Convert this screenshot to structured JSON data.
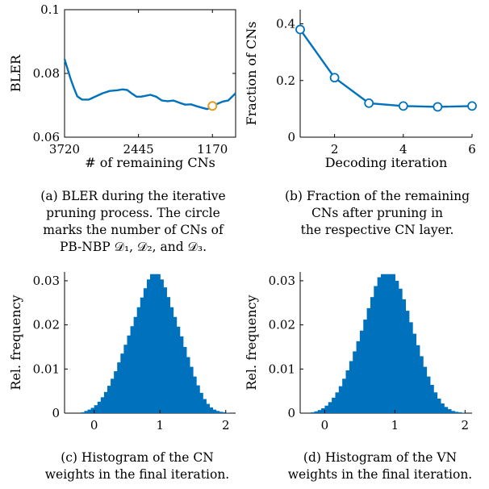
{
  "colors": {
    "series": "#0072bd",
    "highlight": "#e59d21",
    "axis": "#000000"
  },
  "captions": {
    "a": [
      "(a) BLER during the iterative",
      "pruning process. The circle",
      "marks the number of CNs of",
      "PB-NBP 𝒟₁, 𝒟₂, and 𝒟₃."
    ],
    "b": [
      "(b) Fraction of the remaining",
      "CNs after pruning in",
      "the respective CN layer."
    ],
    "c": [
      "(c) Histogram of the CN",
      "weights in the final iteration."
    ],
    "d": [
      "(d) Histogram of the VN",
      "weights in the final iteration."
    ]
  },
  "chart_data": [
    {
      "id": "a",
      "type": "line",
      "xlabel": "# of remaining CNs",
      "ylabel": "BLER",
      "xlim": [
        3720,
        770
      ],
      "ylim": [
        0.06,
        0.1
      ],
      "xticks": [
        3720,
        2445,
        1170
      ],
      "yticks": [
        0.06,
        0.08,
        0.1
      ],
      "ytick_labels": [
        "0.06",
        "0.08",
        "0.1"
      ],
      "x": [
        3720,
        3620,
        3560,
        3500,
        3420,
        3300,
        3180,
        3060,
        2940,
        2820,
        2720,
        2640,
        2560,
        2480,
        2400,
        2320,
        2240,
        2140,
        2040,
        1940,
        1840,
        1740,
        1640,
        1540,
        1440,
        1340,
        1260,
        1170,
        1080,
        990,
        900,
        830,
        770
      ],
      "y": [
        0.0845,
        0.0785,
        0.0755,
        0.0728,
        0.0718,
        0.0718,
        0.0728,
        0.0738,
        0.0745,
        0.0747,
        0.075,
        0.0748,
        0.0737,
        0.0727,
        0.0727,
        0.073,
        0.0733,
        0.0727,
        0.0715,
        0.0713,
        0.0715,
        0.0708,
        0.0702,
        0.0703,
        0.0697,
        0.0692,
        0.0688,
        0.0695,
        0.0705,
        0.0712,
        0.0715,
        0.0727,
        0.0738
      ],
      "marker": {
        "x": 1170,
        "y": 0.0698
      }
    },
    {
      "id": "b",
      "type": "line",
      "xlabel": "Decoding iteration",
      "ylabel": "Fraction of CNs",
      "xlim": [
        1,
        6
      ],
      "ylim": [
        0,
        0.45
      ],
      "xticks": [
        2,
        4,
        6
      ],
      "yticks": [
        0,
        0.2,
        0.4
      ],
      "ytick_labels": [
        "0",
        "0.2",
        "0.4"
      ],
      "x": [
        1,
        2,
        3,
        4,
        5,
        6
      ],
      "y": [
        0.38,
        0.21,
        0.12,
        0.11,
        0.107,
        0.11
      ]
    },
    {
      "id": "c",
      "type": "bar",
      "xlabel": "",
      "ylabel": "Rel. frequency",
      "xlim": [
        -0.45,
        2.15
      ],
      "ylim": [
        0,
        0.032
      ],
      "xticks": [
        0,
        1,
        2
      ],
      "yticks": [
        0,
        0.01,
        0.02,
        0.03
      ],
      "ytick_labels": [
        "0",
        "0.01",
        "0.02",
        "0.03"
      ],
      "bins": [
        -0.2,
        -0.15,
        -0.1,
        -0.05,
        0,
        0.05,
        0.1,
        0.15,
        0.2,
        0.25,
        0.3,
        0.35,
        0.4,
        0.45,
        0.5,
        0.55,
        0.6,
        0.65,
        0.7,
        0.75,
        0.8,
        0.85,
        0.9,
        0.95,
        1.0,
        1.05,
        1.1,
        1.15,
        1.2,
        1.25,
        1.3,
        1.35,
        1.4,
        1.45,
        1.5,
        1.55,
        1.6,
        1.65,
        1.7,
        1.75,
        1.8,
        1.85,
        1.9,
        1.95,
        2.0
      ],
      "values": [
        0.0002,
        0.0005,
        0.0008,
        0.0012,
        0.0018,
        0.0026,
        0.0036,
        0.0048,
        0.0062,
        0.0078,
        0.0095,
        0.0115,
        0.0135,
        0.0155,
        0.0176,
        0.0197,
        0.0218,
        0.024,
        0.0262,
        0.0283,
        0.0303,
        0.0315,
        0.0315,
        0.0315,
        0.0303,
        0.0285,
        0.0263,
        0.024,
        0.0218,
        0.0196,
        0.0174,
        0.015,
        0.0127,
        0.0105,
        0.0083,
        0.0063,
        0.0046,
        0.0032,
        0.0021,
        0.0013,
        0.0008,
        0.0005,
        0.0003,
        0.0002,
        0.0001
      ],
      "bin_width": 0.05
    },
    {
      "id": "d",
      "type": "bar",
      "xlabel": "",
      "ylabel": "Rel. frequency",
      "xlim": [
        -0.35,
        2.1
      ],
      "ylim": [
        0,
        0.032
      ],
      "xticks": [
        0,
        1,
        2
      ],
      "yticks": [
        0,
        0.01,
        0.02,
        0.03
      ],
      "ytick_labels": [
        "0",
        "0.01",
        "0.02",
        "0.03"
      ],
      "bins": [
        -0.2,
        -0.15,
        -0.1,
        -0.05,
        0,
        0.05,
        0.1,
        0.15,
        0.2,
        0.25,
        0.3,
        0.35,
        0.4,
        0.45,
        0.5,
        0.55,
        0.6,
        0.65,
        0.7,
        0.75,
        0.8,
        0.85,
        0.9,
        0.95,
        1.0,
        1.05,
        1.1,
        1.15,
        1.2,
        1.25,
        1.3,
        1.35,
        1.4,
        1.45,
        1.5,
        1.55,
        1.6,
        1.65,
        1.7,
        1.75,
        1.8,
        1.85,
        1.9,
        1.95
      ],
      "values": [
        0.0002,
        0.0004,
        0.0007,
        0.0011,
        0.0017,
        0.0025,
        0.0035,
        0.0047,
        0.0061,
        0.0078,
        0.0097,
        0.0118,
        0.014,
        0.0163,
        0.0187,
        0.0212,
        0.0238,
        0.0263,
        0.0288,
        0.0308,
        0.0315,
        0.0315,
        0.0315,
        0.0315,
        0.03,
        0.0282,
        0.0258,
        0.0232,
        0.0206,
        0.018,
        0.0154,
        0.0129,
        0.0105,
        0.0083,
        0.0064,
        0.0047,
        0.0033,
        0.0022,
        0.0014,
        0.0009,
        0.0005,
        0.0003,
        0.0002,
        0.0001
      ],
      "bin_width": 0.05
    }
  ]
}
